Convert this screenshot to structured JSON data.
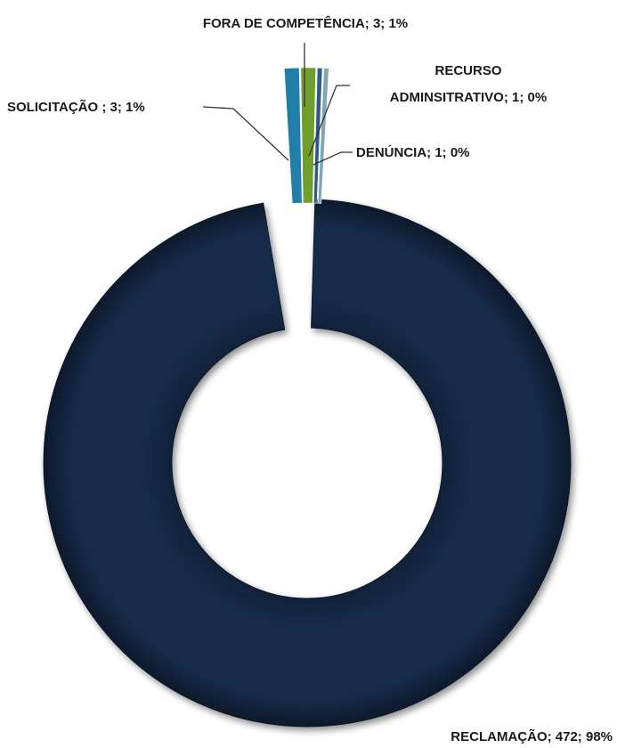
{
  "chart_data": {
    "type": "donut",
    "series": [
      {
        "slices": [
          {
            "name": "RECLAMAÇÃO",
            "value": 472,
            "label": "RECLAMAÇÃO; 472; 98%",
            "color": "#17294a"
          },
          {
            "name": "SOLICITAÇÃO",
            "value": 3,
            "label": "SOLICITAÇÃO ; 3; 1%",
            "color": "#1f7fa8"
          },
          {
            "name": "FORA DE COMPETÊNCIA",
            "value": 3,
            "label": "FORA DE COMPETÊNCIA; 3; 1%",
            "color": "#6f9e2c"
          },
          {
            "name": "RECURSO ADMINSITRATIVO",
            "value": 1,
            "label_lines": [
              "RECURSO",
              "ADMINSITRATIVO; 1; 0%"
            ],
            "color": "#2e5a86"
          },
          {
            "name": "DENÚNCIA",
            "value": 1,
            "label": "DENÚNCIA; 1; 0%",
            "color": "#7fa7b3"
          }
        ]
      }
    ]
  }
}
